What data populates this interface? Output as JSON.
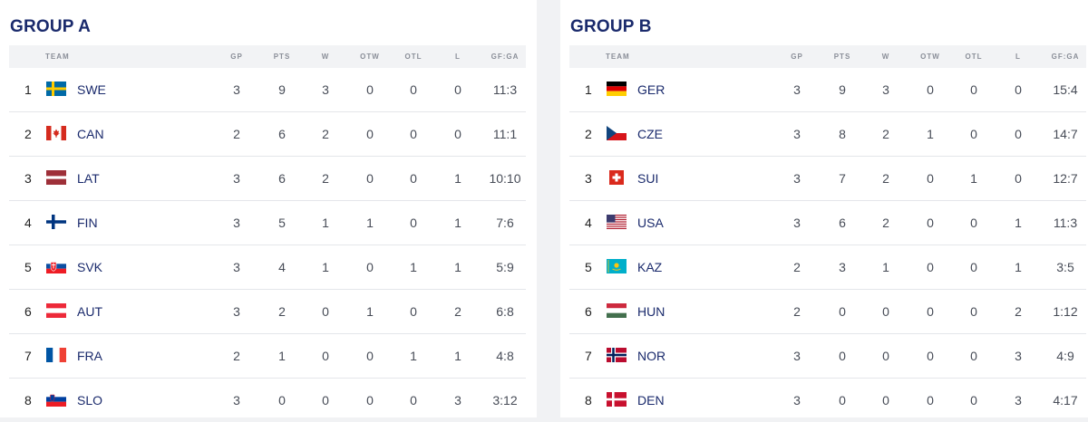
{
  "columns": {
    "team": "TEAM",
    "gp": "GP",
    "pts": "PTS",
    "w": "W",
    "otw": "OTW",
    "otl": "OTL",
    "l": "L",
    "gfga": "GF:GA"
  },
  "colors": {
    "title": "#1a2a6c",
    "team_code": "#1a2a6c",
    "header_bg": "#f2f3f5",
    "divider": "#e4e6ea"
  },
  "groups": [
    {
      "title": "GROUP A",
      "rows": [
        {
          "rank": "1",
          "code": "SWE",
          "flag": "sweden-flag-icon",
          "gp": "3",
          "pts": "9",
          "w": "3",
          "otw": "0",
          "otl": "0",
          "l": "0",
          "gfga": "11:3"
        },
        {
          "rank": "2",
          "code": "CAN",
          "flag": "canada-flag-icon",
          "gp": "2",
          "pts": "6",
          "w": "2",
          "otw": "0",
          "otl": "0",
          "l": "0",
          "gfga": "11:1"
        },
        {
          "rank": "3",
          "code": "LAT",
          "flag": "latvia-flag-icon",
          "gp": "3",
          "pts": "6",
          "w": "2",
          "otw": "0",
          "otl": "0",
          "l": "1",
          "gfga": "10:10"
        },
        {
          "rank": "4",
          "code": "FIN",
          "flag": "finland-flag-icon",
          "gp": "3",
          "pts": "5",
          "w": "1",
          "otw": "1",
          "otl": "0",
          "l": "1",
          "gfga": "7:6"
        },
        {
          "rank": "5",
          "code": "SVK",
          "flag": "slovakia-flag-icon",
          "gp": "3",
          "pts": "4",
          "w": "1",
          "otw": "0",
          "otl": "1",
          "l": "1",
          "gfga": "5:9"
        },
        {
          "rank": "6",
          "code": "AUT",
          "flag": "austria-flag-icon",
          "gp": "3",
          "pts": "2",
          "w": "0",
          "otw": "1",
          "otl": "0",
          "l": "2",
          "gfga": "6:8"
        },
        {
          "rank": "7",
          "code": "FRA",
          "flag": "france-flag-icon",
          "gp": "2",
          "pts": "1",
          "w": "0",
          "otw": "0",
          "otl": "1",
          "l": "1",
          "gfga": "4:8"
        },
        {
          "rank": "8",
          "code": "SLO",
          "flag": "slovenia-flag-icon",
          "gp": "3",
          "pts": "0",
          "w": "0",
          "otw": "0",
          "otl": "0",
          "l": "3",
          "gfga": "3:12"
        }
      ]
    },
    {
      "title": "GROUP B",
      "rows": [
        {
          "rank": "1",
          "code": "GER",
          "flag": "germany-flag-icon",
          "gp": "3",
          "pts": "9",
          "w": "3",
          "otw": "0",
          "otl": "0",
          "l": "0",
          "gfga": "15:4"
        },
        {
          "rank": "2",
          "code": "CZE",
          "flag": "czechia-flag-icon",
          "gp": "3",
          "pts": "8",
          "w": "2",
          "otw": "1",
          "otl": "0",
          "l": "0",
          "gfga": "14:7"
        },
        {
          "rank": "3",
          "code": "SUI",
          "flag": "switzerland-flag-icon",
          "gp": "3",
          "pts": "7",
          "w": "2",
          "otw": "0",
          "otl": "1",
          "l": "0",
          "gfga": "12:7"
        },
        {
          "rank": "4",
          "code": "USA",
          "flag": "usa-flag-icon",
          "gp": "3",
          "pts": "6",
          "w": "2",
          "otw": "0",
          "otl": "0",
          "l": "1",
          "gfga": "11:3"
        },
        {
          "rank": "5",
          "code": "KAZ",
          "flag": "kazakhstan-flag-icon",
          "gp": "2",
          "pts": "3",
          "w": "1",
          "otw": "0",
          "otl": "0",
          "l": "1",
          "gfga": "3:5"
        },
        {
          "rank": "6",
          "code": "HUN",
          "flag": "hungary-flag-icon",
          "gp": "2",
          "pts": "0",
          "w": "0",
          "otw": "0",
          "otl": "0",
          "l": "2",
          "gfga": "1:12"
        },
        {
          "rank": "7",
          "code": "NOR",
          "flag": "norway-flag-icon",
          "gp": "3",
          "pts": "0",
          "w": "0",
          "otw": "0",
          "otl": "0",
          "l": "3",
          "gfga": "4:9"
        },
        {
          "rank": "8",
          "code": "DEN",
          "flag": "denmark-flag-icon",
          "gp": "3",
          "pts": "0",
          "w": "0",
          "otw": "0",
          "otl": "0",
          "l": "3",
          "gfga": "4:17"
        }
      ]
    }
  ]
}
